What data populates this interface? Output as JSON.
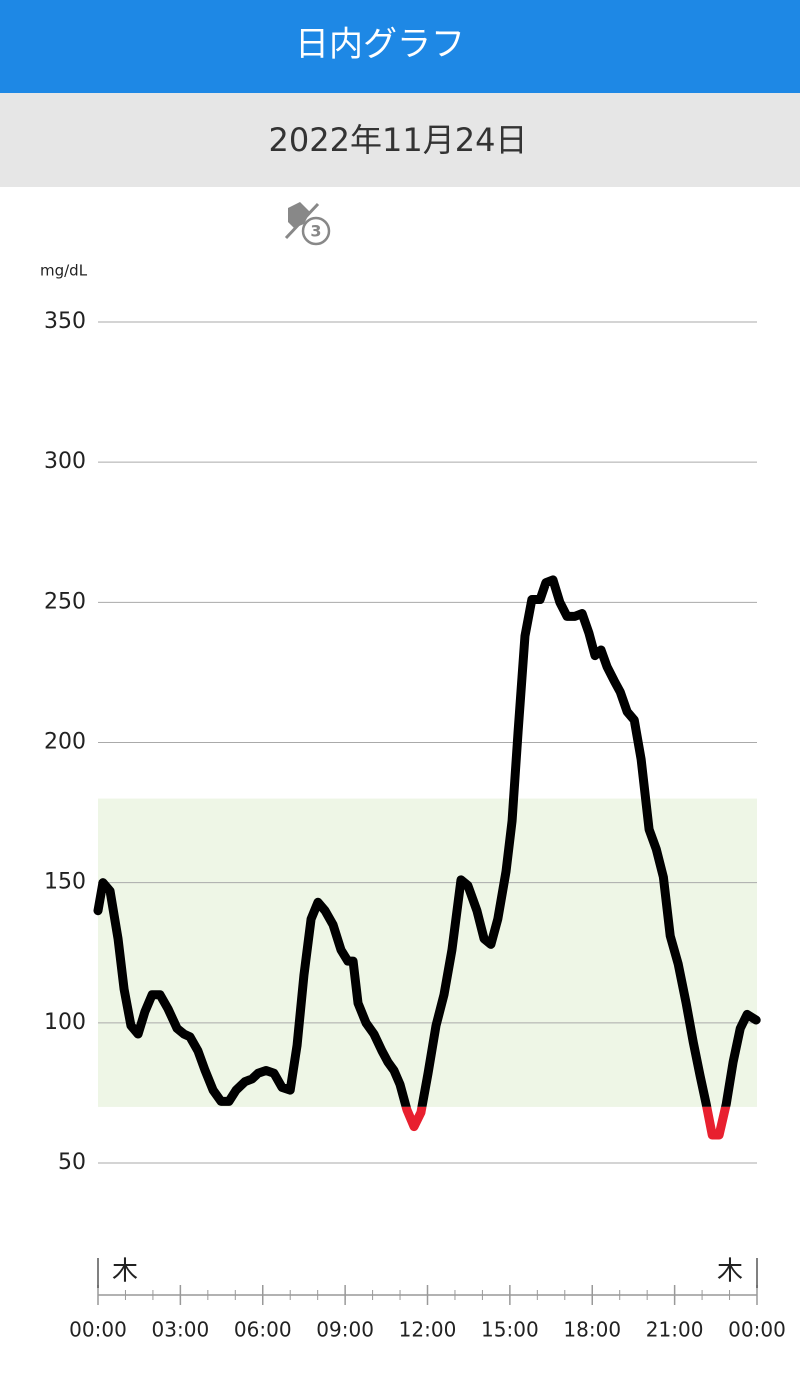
{
  "header": {
    "title": "日内グラフ",
    "date": "2022年11月24日",
    "icon_badge": "3"
  },
  "chart_data": {
    "type": "line",
    "y_unit": "mg/dL",
    "x": [
      0,
      0.18,
      0.44,
      0.73,
      0.95,
      1.2,
      1.46,
      1.71,
      1.97,
      2.26,
      2.55,
      2.88,
      3.13,
      3.35,
      3.64,
      3.9,
      4.19,
      4.48,
      4.77,
      5.03,
      5.35,
      5.61,
      5.83,
      6.12,
      6.41,
      6.7,
      7.0,
      7.25,
      7.5,
      7.76,
      8.01,
      8.27,
      8.56,
      8.85,
      9.1,
      9.29,
      9.47,
      9.76,
      10.05,
      10.34,
      10.56,
      10.78,
      11.0,
      11.25,
      11.51,
      11.76,
      12.02,
      12.31,
      12.6,
      12.89,
      13.22,
      13.47,
      13.8,
      14.06,
      14.31,
      14.56,
      14.86,
      15.08,
      15.3,
      15.55,
      15.8,
      16.1,
      16.31,
      16.57,
      16.82,
      17.08,
      17.37,
      17.63,
      17.88,
      18.1,
      18.32,
      18.54,
      18.8,
      19.02,
      19.27,
      19.53,
      19.78,
      20.07,
      20.33,
      20.59,
      20.84,
      21.13,
      21.42,
      21.68,
      21.93,
      22.15,
      22.37,
      22.62,
      22.88,
      23.13,
      23.39,
      23.64,
      23.97
    ],
    "series": [
      {
        "name": "glucose",
        "color": "#000000",
        "low_color": "#e8202f",
        "values": [
          140,
          150,
          147,
          130,
          112,
          99,
          96,
          104,
          110,
          110,
          105,
          98,
          96,
          95,
          90,
          83,
          76,
          72,
          72,
          76,
          79,
          80,
          82,
          83,
          82,
          77,
          76,
          92,
          117,
          137,
          143,
          140,
          135,
          126,
          122,
          122,
          107,
          100,
          96,
          90,
          86,
          83,
          78,
          69,
          63,
          68,
          82,
          99,
          110,
          126,
          151,
          149,
          140,
          130,
          128,
          137,
          154,
          172,
          204,
          238,
          251,
          251,
          257,
          258,
          250,
          245,
          245,
          246,
          239,
          231,
          233,
          227,
          222,
          218,
          211,
          208,
          194,
          169,
          162,
          152,
          131,
          121,
          107,
          93,
          81,
          71,
          60,
          60,
          71,
          86,
          98,
          103,
          101
        ]
      }
    ],
    "target_range": [
      70,
      180
    ],
    "target_color": "#eef6e6",
    "ylim": [
      50,
      350
    ],
    "yticks": [
      50,
      100,
      150,
      200,
      250,
      300,
      350
    ],
    "grid": true,
    "xlim": [
      0,
      24
    ],
    "xticks": [
      {
        "value": 0,
        "label": "00:00"
      },
      {
        "value": 3,
        "label": "03:00"
      },
      {
        "value": 6,
        "label": "06:00"
      },
      {
        "value": 9,
        "label": "09:00"
      },
      {
        "value": 12,
        "label": "12:00"
      },
      {
        "value": 15,
        "label": "15:00"
      },
      {
        "value": 18,
        "label": "18:00"
      },
      {
        "value": 21,
        "label": "21:00"
      },
      {
        "value": 24,
        "label": "00:00"
      }
    ],
    "x_minor_step": 1,
    "day_labels": [
      "木",
      "木"
    ]
  }
}
